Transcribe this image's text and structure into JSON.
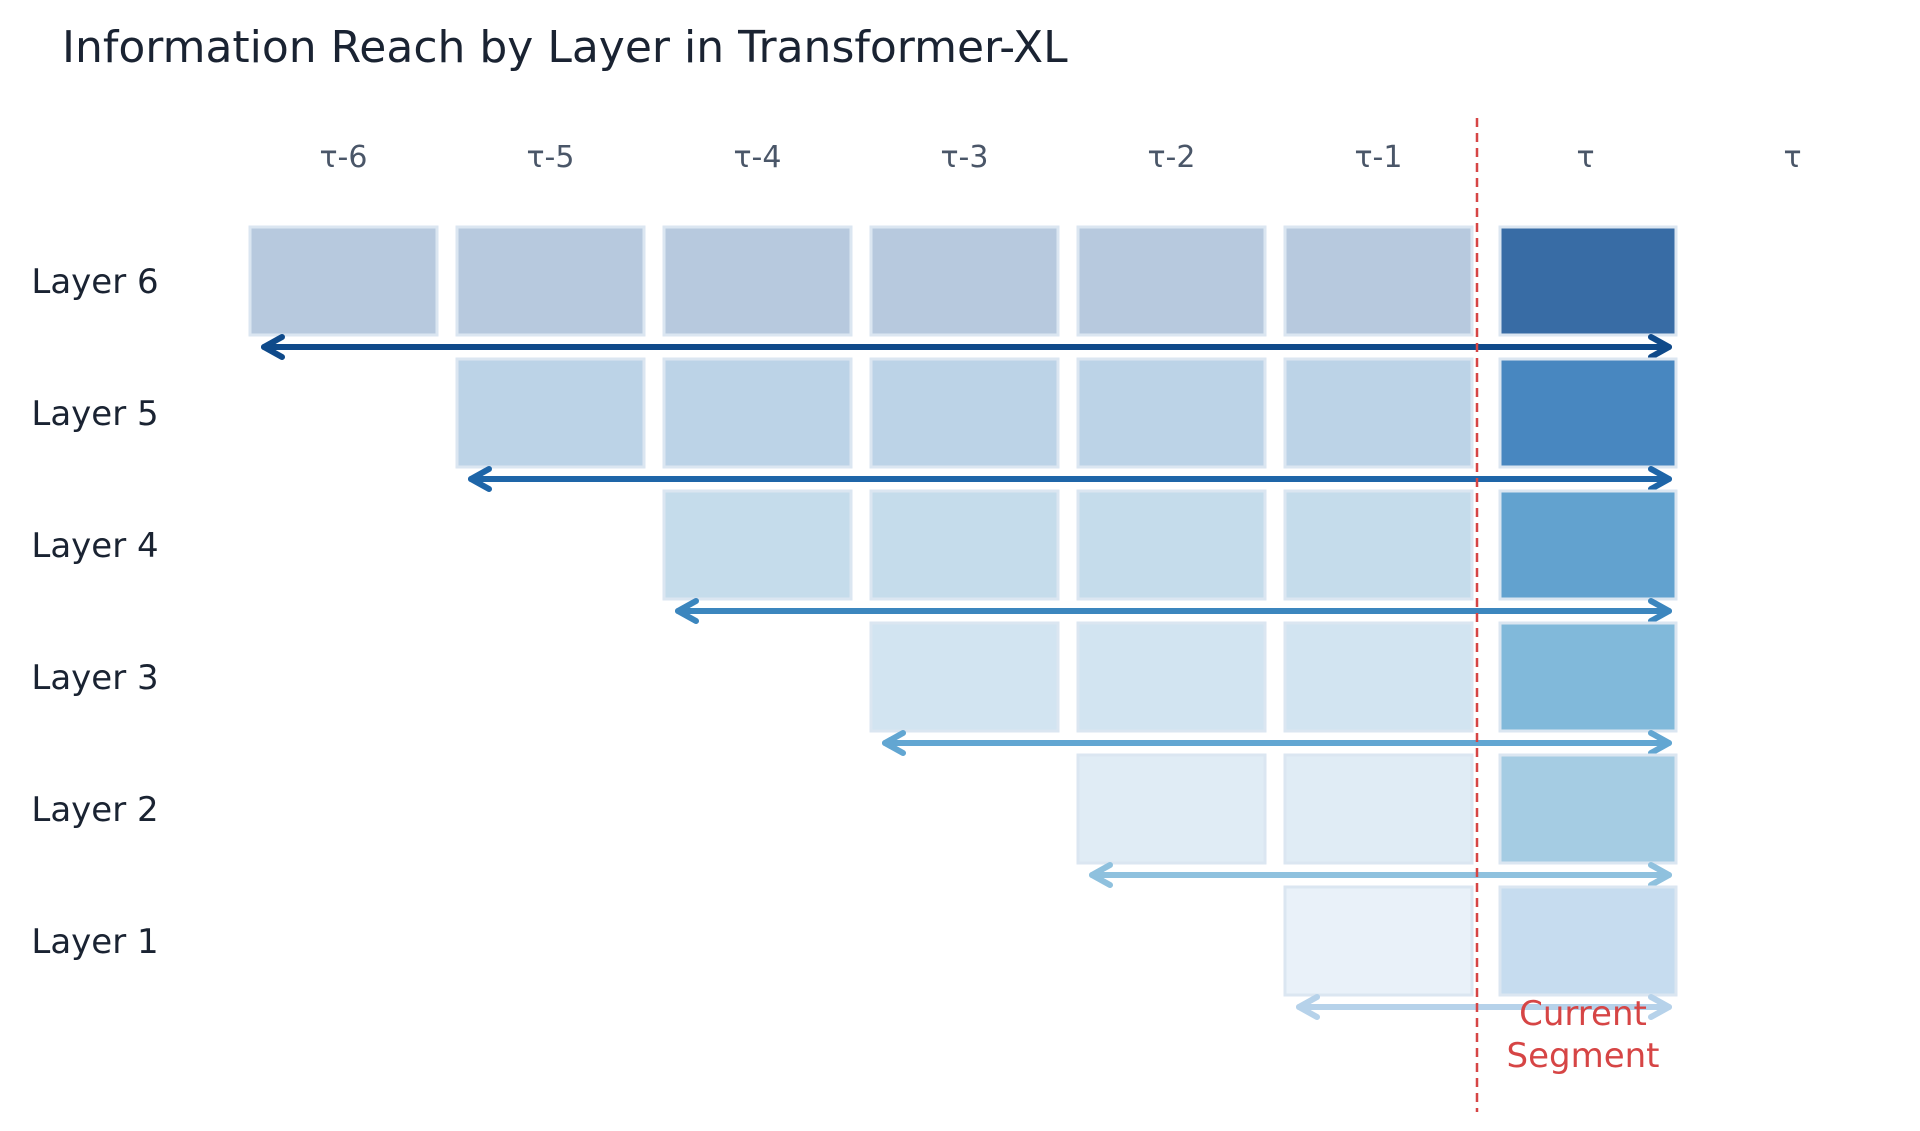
{
  "title": "Information Reach by Layer in Transformer-XL",
  "columns": [
    "τ-6",
    "τ-5",
    "τ-4",
    "τ-3",
    "τ-2",
    "τ-1",
    "τ",
    "τ"
  ],
  "layers": [
    {
      "label": "Layer 6",
      "reach_start": "τ-6",
      "memory_color": "#b7c9de",
      "current_color": "#386ca5",
      "arrow_color": "#0f4a8a"
    },
    {
      "label": "Layer 5",
      "reach_start": "τ-5",
      "memory_color": "#bcd3e7",
      "current_color": "#4887c0",
      "arrow_color": "#1e65a8"
    },
    {
      "label": "Layer 4",
      "reach_start": "τ-4",
      "memory_color": "#c5dceb",
      "current_color": "#62a2cf",
      "arrow_color": "#3c86be"
    },
    {
      "label": "Layer 3",
      "reach_start": "τ-3",
      "memory_color": "#d2e4f1",
      "current_color": "#81b9da",
      "arrow_color": "#62a6d2"
    },
    {
      "label": "Layer 2",
      "reach_start": "τ-2",
      "memory_color": "#e0ecf5",
      "current_color": "#a5cce3",
      "arrow_color": "#8fc1de"
    },
    {
      "label": "Layer 1",
      "reach_start": "τ-1",
      "memory_color": "#e9f1f9",
      "current_color": "#c6dcef",
      "arrow_color": "#b6d2ea"
    }
  ],
  "current_segment": {
    "label_line1": "Current",
    "label_line2": "Segment",
    "color": "#d64545"
  }
}
